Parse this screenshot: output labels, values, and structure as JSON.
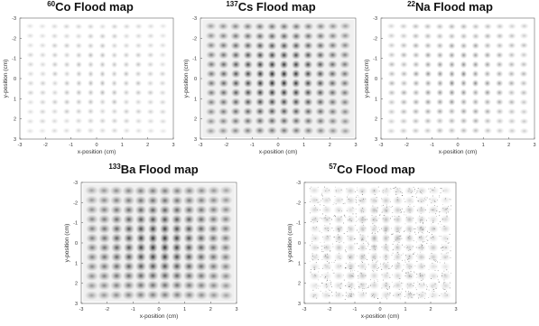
{
  "chart_data": [
    {
      "type": "heatmap",
      "title_sup": "60",
      "title_main": "Co Flood map",
      "xlabel": "x-position (cm)",
      "ylabel": "y-position (cm)",
      "xlim": [
        -3,
        3
      ],
      "ylim": [
        -3,
        3
      ],
      "y_reversed": true,
      "xticks": [
        -3,
        -2,
        -1,
        0,
        1,
        2,
        3
      ],
      "yticks": [
        -3,
        -2,
        -1,
        0,
        1,
        2,
        3
      ],
      "grid": "off",
      "spots": {
        "count": 12,
        "from": -2.6,
        "to": 2.6,
        "peak_intensity": 0.45,
        "radius": 0.13,
        "spread": "light"
      }
    },
    {
      "type": "heatmap",
      "title_sup": "137",
      "title_main": "Cs Flood map",
      "xlabel": "x-position (cm)",
      "ylabel": "y-position (cm)",
      "xlim": [
        -3,
        3
      ],
      "ylim": [
        -3,
        3
      ],
      "y_reversed": true,
      "xticks": [
        -3,
        -2,
        -1,
        0,
        1,
        2,
        3
      ],
      "yticks": [
        -3,
        -2,
        -1,
        0,
        1,
        2,
        3
      ],
      "grid": "off",
      "spots": {
        "count": 12,
        "from": -2.6,
        "to": 2.6,
        "peak_intensity": 0.9,
        "radius": 0.17,
        "spread": "dense"
      }
    },
    {
      "type": "heatmap",
      "title_sup": "22",
      "title_main": "Na Flood map",
      "xlabel": "x-position (cm)",
      "ylabel": "y-position (cm)",
      "xlim": [
        -3,
        3
      ],
      "ylim": [
        -3,
        3
      ],
      "y_reversed": true,
      "xticks": [
        -3,
        -2,
        -1,
        0,
        1,
        2,
        3
      ],
      "yticks": [
        -3,
        -2,
        -1,
        0,
        1,
        2,
        3
      ],
      "grid": "off",
      "spots": {
        "count": 12,
        "from": -2.6,
        "to": 2.6,
        "peak_intensity": 0.6,
        "radius": 0.14,
        "spread": "medium"
      }
    },
    {
      "type": "heatmap",
      "title_sup": "133",
      "title_main": "Ba Flood map",
      "xlabel": "x-position (cm)",
      "ylabel": "y-position (cm)",
      "xlim": [
        -3,
        3
      ],
      "ylim": [
        -3,
        3
      ],
      "y_reversed": true,
      "xticks": [
        -3,
        -2,
        -1,
        0,
        1,
        2,
        3
      ],
      "yticks": [
        -3,
        -2,
        -1,
        0,
        1,
        2,
        3
      ],
      "grid": "off",
      "spots": {
        "count": 12,
        "from": -2.6,
        "to": 2.6,
        "peak_intensity": 0.85,
        "radius": 0.2,
        "spread": "dense"
      }
    },
    {
      "type": "heatmap",
      "title_sup": "57",
      "title_main": "Co Flood map",
      "xlabel": "x-position (cm)",
      "ylabel": "y-position (cm)",
      "xlim": [
        -3,
        3
      ],
      "ylim": [
        -3,
        3
      ],
      "y_reversed": true,
      "xticks": [
        -3,
        -2,
        -1,
        0,
        1,
        2,
        3
      ],
      "yticks": [
        -3,
        -2,
        -1,
        0,
        1,
        2,
        3
      ],
      "grid": "off",
      "spots": {
        "count": 12,
        "from": -2.6,
        "to": 2.6,
        "peak_intensity": 0.5,
        "radius": 0.18,
        "spread": "noisy"
      }
    }
  ]
}
